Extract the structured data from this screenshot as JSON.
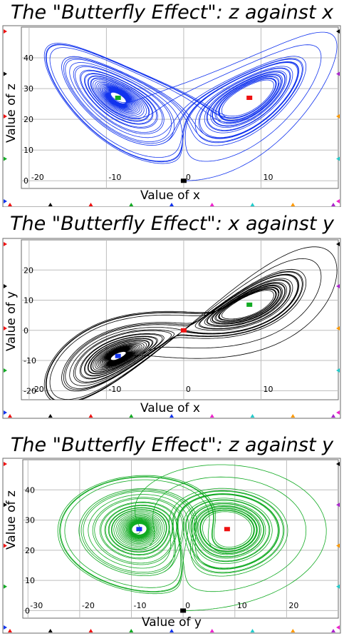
{
  "colors": {
    "frame": "#6a6a6a",
    "grid": "#bdbdbd",
    "red": "#ee1111",
    "green": "#11aa22",
    "blue": "#1133ee",
    "black": "#000000"
  },
  "charts": [
    {
      "title": "The \"Butterfly Effect\": z against x",
      "xlabel": "Value of x",
      "ylabel": "Value of z",
      "xticks": [
        {
          "v": -20,
          "label": "-20"
        },
        {
          "v": -10,
          "label": "-10"
        },
        {
          "v": 0,
          "label": "0"
        },
        {
          "v": 10,
          "label": "10"
        }
      ],
      "yticks": [
        {
          "v": 0,
          "label": "0"
        },
        {
          "v": 10,
          "label": "10"
        },
        {
          "v": 20,
          "label": "20"
        },
        {
          "v": 30,
          "label": "30"
        },
        {
          "v": 40,
          "label": "40"
        }
      ],
      "curve_color": "#1133ee"
    },
    {
      "title": "The \"Butterfly Effect\": x against y",
      "xlabel": "Value of x",
      "ylabel": "Value of y",
      "xticks": [
        {
          "v": -20,
          "label": "-20"
        },
        {
          "v": -10,
          "label": "-10"
        },
        {
          "v": 0,
          "label": "0"
        },
        {
          "v": 10,
          "label": "10"
        }
      ],
      "yticks": [
        {
          "v": -20,
          "label": "-20"
        },
        {
          "v": -10,
          "label": "-10"
        },
        {
          "v": 0,
          "label": "0"
        },
        {
          "v": 10,
          "label": "10"
        },
        {
          "v": 20,
          "label": "20"
        }
      ],
      "curve_color": "#000000"
    },
    {
      "title": "The \"Butterfly Effect\": z against y",
      "xlabel": "Value of y",
      "ylabel": "Value of z",
      "xticks": [
        {
          "v": -30,
          "label": "-30"
        },
        {
          "v": -20,
          "label": "-20"
        },
        {
          "v": -10,
          "label": "-10"
        },
        {
          "v": 0,
          "label": "0"
        },
        {
          "v": 10,
          "label": "10"
        },
        {
          "v": 20,
          "label": "20"
        }
      ],
      "yticks": [
        {
          "v": 0,
          "label": "0"
        },
        {
          "v": 10,
          "label": "10"
        },
        {
          "v": 20,
          "label": "20"
        },
        {
          "v": 30,
          "label": "30"
        },
        {
          "v": 40,
          "label": "40"
        }
      ],
      "curve_color": "#11aa22"
    }
  ],
  "chart_data": [
    {
      "type": "line",
      "title": "The \"Butterfly Effect\": z against x",
      "xlabel": "Value of x",
      "ylabel": "Value of z",
      "xlim": [
        -21,
        20
      ],
      "ylim": [
        -2.5,
        50
      ],
      "grid": true,
      "system": "Lorenz attractor (sigma=10, rho=28, beta=8/3)",
      "markers": [
        {
          "color": "green",
          "x": -8.5,
          "y": 27
        },
        {
          "color": "red",
          "x": 8.5,
          "y": 27
        },
        {
          "color": "black",
          "x": 0,
          "y": 0
        }
      ]
    },
    {
      "type": "line",
      "title": "The \"Butterfly Effect\": x against y",
      "xlabel": "Value of x",
      "ylabel": "Value of y",
      "xlim": [
        -21,
        20
      ],
      "ylim": [
        -23,
        30
      ],
      "grid": true,
      "system": "Lorenz attractor (sigma=10, rho=28, beta=8/3)",
      "markers": [
        {
          "color": "blue",
          "x": -8.5,
          "y": -8.5
        },
        {
          "color": "red",
          "x": 0,
          "y": 0
        },
        {
          "color": "green",
          "x": 8.5,
          "y": 8.5
        }
      ]
    },
    {
      "type": "line",
      "title": "The \"Butterfly Effect\": z against y",
      "xlabel": "Value of y",
      "ylabel": "Value of z",
      "xlim": [
        -31,
        30
      ],
      "ylim": [
        -2.5,
        50
      ],
      "grid": true,
      "system": "Lorenz attractor (sigma=10, rho=28, beta=8/3)",
      "markers": [
        {
          "color": "blue",
          "x": -8.5,
          "y": 27
        },
        {
          "color": "red",
          "x": 8.5,
          "y": 27
        },
        {
          "color": "black",
          "x": 0,
          "y": 0
        }
      ]
    }
  ]
}
